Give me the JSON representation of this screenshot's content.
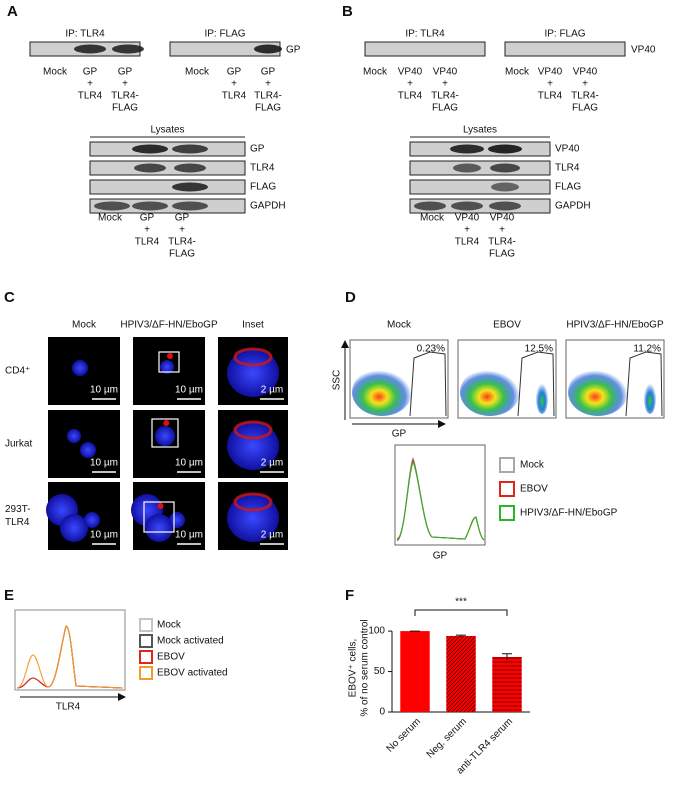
{
  "panel_a": {
    "letter": "A",
    "ip_titles": [
      "IP: TLR4",
      "IP: FLAG"
    ],
    "ip_band_label": "GP",
    "lanes": [
      [
        "Mock"
      ],
      [
        "GP",
        "+",
        "TLR4"
      ],
      [
        "GP",
        "+",
        "TLR4-",
        "FLAG"
      ]
    ],
    "lysates_title": "Lysates",
    "lysate_bands": [
      "GP",
      "TLR4",
      "FLAG",
      "GAPDH"
    ]
  },
  "panel_b": {
    "letter": "B",
    "ip_titles": [
      "IP: TLR4",
      "IP: FLAG"
    ],
    "ip_band_label": "VP40",
    "lanes": [
      [
        "Mock"
      ],
      [
        "VP40",
        "+",
        "TLR4"
      ],
      [
        "VP40",
        "+",
        "TLR4-",
        "FLAG"
      ]
    ],
    "lysates_title": "Lysates",
    "lysate_bands": [
      "VP40",
      "TLR4",
      "FLAG",
      "GAPDH"
    ]
  },
  "panel_c": {
    "letter": "C",
    "columns": [
      "Mock",
      "HPIV3/ΔF-HN/EboGP",
      "Inset"
    ],
    "rows": [
      {
        "label": [
          "CD4⁺"
        ],
        "scale_bars": [
          "10 µm",
          "10 µm",
          "2 µm"
        ]
      },
      {
        "label": [
          "Jurkat"
        ],
        "scale_bars": [
          "10 µm",
          "10 µm",
          "2 µm"
        ]
      },
      {
        "label": [
          "293T-",
          "TLR4"
        ],
        "scale_bars": [
          "10 µm",
          "10 µm",
          "2 µm"
        ]
      }
    ]
  },
  "panel_d": {
    "letter": "D",
    "plots": [
      {
        "title": "Mock",
        "gate_percent": "0.23%"
      },
      {
        "title": "EBOV",
        "gate_percent": "12.5%"
      },
      {
        "title": "HPIV3/ΔF-HN/EboGP",
        "gate_percent": "11.2%"
      }
    ],
    "y_axis_label": "SSC",
    "x_axis_label": "GP",
    "histogram_x_label": "GP",
    "legend": [
      {
        "name": "Mock",
        "color": "#a8a8a8"
      },
      {
        "name": "EBOV",
        "color": "#e0261c"
      },
      {
        "name": "HPIV3/ΔF-HN/EboGP",
        "color": "#2bb52b"
      }
    ]
  },
  "panel_e": {
    "letter": "E",
    "x_axis_label": "TLR4",
    "legend": [
      {
        "name": "Mock",
        "color": "#c4c4c4"
      },
      {
        "name": "Mock activated",
        "color": "#555555"
      },
      {
        "name": "EBOV",
        "color": "#e0261c"
      },
      {
        "name": "EBOV activated",
        "color": "#f39a2b"
      }
    ]
  },
  "chart_data": {
    "type": "bar",
    "panel": "F",
    "y_label": [
      "EBOV⁺ cells,",
      "% of no serum control"
    ],
    "categories": [
      "No serum",
      "Neg. serum",
      "anti-TLR4 serum"
    ],
    "values": [
      100,
      94,
      68
    ],
    "errors": [
      0,
      1,
      4
    ],
    "colors": [
      "#ff0000",
      "#ff0000",
      "#ff0000"
    ],
    "fill_styles": [
      "solid",
      "diagonal",
      "horizontal"
    ],
    "annotation": "***",
    "ylim": [
      0,
      110
    ],
    "yticks": [
      0,
      50,
      100
    ]
  }
}
